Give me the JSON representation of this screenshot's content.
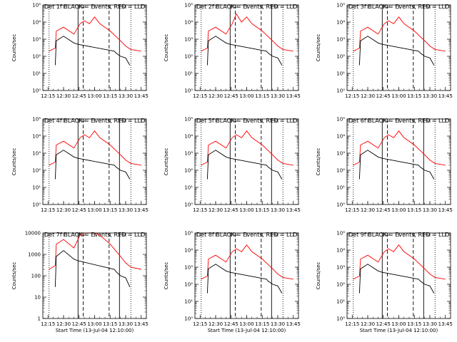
{
  "colors": {
    "background": "#ffffff",
    "events": "#000000",
    "lld": "#ff0000"
  },
  "chart_data": [
    {
      "type": "line",
      "title": "Det 1f BLACK = Events, RED = LLD",
      "ylabel": "Counts/sec",
      "xlabel": "",
      "yscale": "log",
      "ylim": [
        1,
        100000
      ],
      "ytick_labels": [
        "10⁰",
        "10¹",
        "10²",
        "10³",
        "10⁴",
        "10⁵"
      ],
      "xticks": [
        "12:15",
        "12:30",
        "12:45",
        "13:00",
        "13:15",
        "13:30",
        "13:45"
      ],
      "xlim": [
        "12:10",
        "13:50"
      ],
      "vlines": {
        "dotted": [
          "12:16",
          "13:35"
        ],
        "dashed": [
          "12:49",
          "13:14"
        ],
        "solid": [
          "12:44",
          "13:24"
        ]
      },
      "series": [
        {
          "name": "LLD",
          "color": "red",
          "x": [
            "12:16",
            "12:22",
            "12:23",
            "12:30",
            "12:40",
            "12:46",
            "12:50",
            "12:55",
            "13:00",
            "13:05",
            "13:15",
            "13:25",
            "13:30",
            "13:35",
            "13:45"
          ],
          "y": [
            200,
            300,
            3000,
            5000,
            2000,
            8000,
            12000,
            8000,
            20000,
            8000,
            3000,
            800,
            400,
            250,
            200
          ]
        },
        {
          "name": "Events",
          "color": "black",
          "x": [
            "12:22",
            "12:23",
            "12:30",
            "12:40",
            "12:44",
            "13:19",
            "13:21",
            "13:25",
            "13:30",
            "13:34"
          ],
          "y": [
            30,
            800,
            1500,
            600,
            500,
            200,
            150,
            100,
            80,
            30
          ]
        }
      ]
    },
    {
      "type": "line",
      "title": "Det 2f BLACK = Events, RED = LLD",
      "ylabel": "Counts/sec",
      "xlabel": "",
      "yscale": "log",
      "ylim": [
        1,
        100000
      ],
      "ytick_labels": [
        "10⁰",
        "10¹",
        "10²",
        "10³",
        "10⁴",
        "10⁵"
      ],
      "xticks": [
        "12:15",
        "12:30",
        "12:45",
        "13:00",
        "13:15",
        "13:30",
        "13:45"
      ],
      "xlim": [
        "12:10",
        "13:50"
      ],
      "vlines": {
        "dotted": [
          "12:16",
          "13:35"
        ],
        "dashed": [
          "12:49",
          "13:14"
        ],
        "solid": [
          "12:44",
          "13:24"
        ]
      },
      "series": [
        {
          "name": "LLD",
          "color": "red",
          "x": [
            "12:16",
            "12:22",
            "12:23",
            "12:30",
            "12:40",
            "12:46",
            "12:50",
            "12:55",
            "13:00",
            "13:05",
            "13:15",
            "13:25",
            "13:30",
            "13:35",
            "13:45"
          ],
          "y": [
            200,
            300,
            3000,
            5000,
            2000,
            8000,
            30000,
            10000,
            20000,
            8000,
            3000,
            800,
            400,
            250,
            200
          ]
        },
        {
          "name": "Events",
          "color": "black",
          "x": [
            "12:22",
            "12:23",
            "12:30",
            "12:40",
            "12:44",
            "13:19",
            "13:21",
            "13:25",
            "13:30",
            "13:34"
          ],
          "y": [
            30,
            800,
            1500,
            600,
            500,
            200,
            150,
            100,
            80,
            30
          ]
        }
      ]
    },
    {
      "type": "line",
      "title": "Det 3f BLACK = Events, RED = LLD",
      "ylabel": "Counts/sec",
      "xlabel": "",
      "yscale": "log",
      "ylim": [
        1,
        100000
      ],
      "ytick_labels": [
        "10⁰",
        "10¹",
        "10²",
        "10³",
        "10⁴",
        "10⁵"
      ],
      "xticks": [
        "12:15",
        "12:30",
        "12:45",
        "13:00",
        "13:15",
        "13:30",
        "13:45"
      ],
      "xlim": [
        "12:10",
        "13:50"
      ],
      "vlines": {
        "dotted": [
          "12:16",
          "13:35"
        ],
        "dashed": [
          "12:49",
          "13:14"
        ],
        "solid": [
          "12:44",
          "13:24"
        ]
      },
      "series": [
        {
          "name": "LLD",
          "color": "red",
          "x": [
            "12:16",
            "12:22",
            "12:23",
            "12:30",
            "12:40",
            "12:46",
            "12:50",
            "12:55",
            "13:00",
            "13:05",
            "13:15",
            "13:25",
            "13:30",
            "13:35",
            "13:45"
          ],
          "y": [
            200,
            300,
            3000,
            5000,
            2000,
            8000,
            12000,
            8000,
            20000,
            8000,
            3000,
            800,
            400,
            250,
            200
          ]
        },
        {
          "name": "Events",
          "color": "black",
          "x": [
            "12:22",
            "12:23",
            "12:30",
            "12:40",
            "12:44",
            "13:19",
            "13:21",
            "13:25",
            "13:30",
            "13:34"
          ],
          "y": [
            30,
            800,
            1500,
            600,
            500,
            200,
            150,
            100,
            80,
            30
          ]
        }
      ]
    },
    {
      "type": "line",
      "title": "Det 4f BLACK = Events, RED = LLD",
      "ylabel": "Counts/sec",
      "xlabel": "",
      "yscale": "log",
      "ylim": [
        1,
        100000
      ],
      "ytick_labels": [
        "10⁰",
        "10¹",
        "10²",
        "10³",
        "10⁴",
        "10⁵"
      ],
      "xticks": [
        "12:15",
        "12:30",
        "12:45",
        "13:00",
        "13:15",
        "13:30",
        "13:45"
      ],
      "xlim": [
        "12:10",
        "13:50"
      ],
      "vlines": {
        "dotted": [
          "12:16",
          "13:35"
        ],
        "dashed": [
          "12:49",
          "13:14"
        ],
        "solid": [
          "12:44",
          "13:24"
        ]
      },
      "series": [
        {
          "name": "LLD",
          "color": "red",
          "x": [
            "12:16",
            "12:22",
            "12:23",
            "12:30",
            "12:40",
            "12:46",
            "12:50",
            "12:55",
            "13:00",
            "13:05",
            "13:15",
            "13:25",
            "13:30",
            "13:35",
            "13:45"
          ],
          "y": [
            200,
            300,
            3000,
            5000,
            2000,
            8000,
            12000,
            8000,
            20000,
            8000,
            3000,
            800,
            400,
            250,
            200
          ]
        },
        {
          "name": "Events",
          "color": "black",
          "x": [
            "12:22",
            "12:23",
            "12:30",
            "12:40",
            "12:44",
            "13:19",
            "13:21",
            "13:25",
            "13:30",
            "13:34"
          ],
          "y": [
            30,
            800,
            1500,
            600,
            500,
            200,
            150,
            100,
            80,
            30
          ]
        }
      ]
    },
    {
      "type": "line",
      "title": "Det 5f BLACK = Events, RED = LLD",
      "ylabel": "Counts/sec",
      "xlabel": "",
      "yscale": "log",
      "ylim": [
        1,
        100000
      ],
      "ytick_labels": [
        "10⁰",
        "10¹",
        "10²",
        "10³",
        "10⁴",
        "10⁵"
      ],
      "xticks": [
        "12:15",
        "12:30",
        "12:45",
        "13:00",
        "13:15",
        "13:30",
        "13:45"
      ],
      "xlim": [
        "12:10",
        "13:50"
      ],
      "vlines": {
        "dotted": [
          "12:16",
          "13:35"
        ],
        "dashed": [
          "12:49",
          "13:14"
        ],
        "solid": [
          "12:44",
          "13:24"
        ]
      },
      "series": [
        {
          "name": "LLD",
          "color": "red",
          "x": [
            "12:16",
            "12:22",
            "12:23",
            "12:30",
            "12:40",
            "12:46",
            "12:50",
            "12:55",
            "13:00",
            "13:05",
            "13:15",
            "13:25",
            "13:30",
            "13:35",
            "13:45"
          ],
          "y": [
            200,
            300,
            3000,
            5000,
            2000,
            8000,
            12000,
            8000,
            20000,
            8000,
            3000,
            800,
            400,
            250,
            200
          ]
        },
        {
          "name": "Events",
          "color": "black",
          "x": [
            "12:22",
            "12:23",
            "12:30",
            "12:40",
            "12:44",
            "13:19",
            "13:21",
            "13:25",
            "13:30",
            "13:34"
          ],
          "y": [
            30,
            800,
            1500,
            600,
            500,
            200,
            150,
            100,
            80,
            30
          ]
        }
      ]
    },
    {
      "type": "line",
      "title": "Det 6f BLACK = Events, RED = LLD",
      "ylabel": "Counts/sec",
      "xlabel": "",
      "yscale": "log",
      "ylim": [
        1,
        100000
      ],
      "ytick_labels": [
        "10⁰",
        "10¹",
        "10²",
        "10³",
        "10⁴",
        "10⁵"
      ],
      "xticks": [
        "12:15",
        "12:30",
        "12:45",
        "13:00",
        "13:15",
        "13:30",
        "13:45"
      ],
      "xlim": [
        "12:10",
        "13:50"
      ],
      "vlines": {
        "dotted": [
          "12:16",
          "13:35"
        ],
        "dashed": [
          "12:49",
          "13:14"
        ],
        "solid": [
          "12:44",
          "13:24"
        ]
      },
      "series": [
        {
          "name": "LLD",
          "color": "red",
          "x": [
            "12:16",
            "12:22",
            "12:23",
            "12:30",
            "12:40",
            "12:46",
            "12:50",
            "12:55",
            "13:00",
            "13:05",
            "13:15",
            "13:25",
            "13:30",
            "13:35",
            "13:45"
          ],
          "y": [
            200,
            300,
            3000,
            5000,
            2000,
            8000,
            12000,
            8000,
            20000,
            8000,
            3000,
            800,
            400,
            250,
            200
          ]
        },
        {
          "name": "Events",
          "color": "black",
          "x": [
            "12:22",
            "12:23",
            "12:30",
            "12:40",
            "12:44",
            "13:19",
            "13:21",
            "13:25",
            "13:30",
            "13:34"
          ],
          "y": [
            30,
            800,
            1500,
            600,
            500,
            200,
            150,
            100,
            80,
            30
          ]
        }
      ]
    },
    {
      "type": "line",
      "title": "Det 7f BLACK = Events, RED = LLD",
      "ylabel": "Counts/sec",
      "xlabel": "Start Time (13-Jul-04 12:10:00)",
      "yscale": "log",
      "ylim": [
        1,
        10000
      ],
      "ytick_labels": [
        "1",
        "10",
        "100",
        "1000",
        "10000"
      ],
      "xticks": [
        "12:15",
        "12:30",
        "12:45",
        "13:00",
        "13:15",
        "13:30",
        "13:45"
      ],
      "xlim": [
        "12:10",
        "13:50"
      ],
      "vlines": {
        "dotted": [
          "12:16",
          "13:35"
        ],
        "dashed": [
          "12:49",
          "13:14"
        ],
        "solid": [
          "12:44",
          "13:24"
        ]
      },
      "series": [
        {
          "name": "LLD",
          "color": "red",
          "x": [
            "12:16",
            "12:22",
            "12:23",
            "12:30",
            "12:40",
            "12:46",
            "12:50",
            "12:55",
            "13:00",
            "13:05",
            "13:15",
            "13:25",
            "13:30",
            "13:35",
            "13:45"
          ],
          "y": [
            200,
            300,
            3000,
            5000,
            2000,
            8000,
            10000,
            10000,
            10000,
            8000,
            3000,
            800,
            400,
            250,
            200
          ]
        },
        {
          "name": "Events",
          "color": "black",
          "x": [
            "12:22",
            "12:23",
            "12:30",
            "12:40",
            "12:44",
            "13:19",
            "13:21",
            "13:25",
            "13:30",
            "13:34"
          ],
          "y": [
            30,
            800,
            1500,
            600,
            500,
            200,
            150,
            100,
            80,
            30
          ]
        }
      ]
    },
    {
      "type": "line",
      "title": "Det 8f BLACK = Events, RED = LLD",
      "ylabel": "Counts/sec",
      "xlabel": "Start Time (13-Jul-04 12:10:00)",
      "yscale": "log",
      "ylim": [
        1,
        100000
      ],
      "ytick_labels": [
        "10⁰",
        "10¹",
        "10²",
        "10³",
        "10⁴",
        "10⁵"
      ],
      "xticks": [
        "12:15",
        "12:30",
        "12:45",
        "13:00",
        "13:15",
        "13:30",
        "13:45"
      ],
      "xlim": [
        "12:10",
        "13:50"
      ],
      "vlines": {
        "dotted": [
          "12:16",
          "13:35"
        ],
        "dashed": [
          "12:49",
          "13:14"
        ],
        "solid": [
          "12:44",
          "13:24"
        ]
      },
      "series": [
        {
          "name": "LLD",
          "color": "red",
          "x": [
            "12:16",
            "12:22",
            "12:23",
            "12:30",
            "12:40",
            "12:46",
            "12:50",
            "12:55",
            "13:00",
            "13:05",
            "13:15",
            "13:25",
            "13:30",
            "13:35",
            "13:45"
          ],
          "y": [
            200,
            300,
            3000,
            5000,
            2000,
            8000,
            12000,
            8000,
            20000,
            8000,
            3000,
            800,
            400,
            250,
            200
          ]
        },
        {
          "name": "Events",
          "color": "black",
          "x": [
            "12:22",
            "12:23",
            "12:30",
            "12:40",
            "12:44",
            "13:19",
            "13:21",
            "13:25",
            "13:30",
            "13:34"
          ],
          "y": [
            30,
            800,
            1500,
            600,
            500,
            200,
            150,
            100,
            80,
            30
          ]
        }
      ]
    },
    {
      "type": "line",
      "title": "Det 9f BLACK = Events, RED = LLD",
      "ylabel": "Counts/sec",
      "xlabel": "Start Time (13-Jul-04 12:10:00)",
      "yscale": "log",
      "ylim": [
        1,
        100000
      ],
      "ytick_labels": [
        "10⁰",
        "10¹",
        "10²",
        "10³",
        "10⁴",
        "10⁵"
      ],
      "xticks": [
        "12:15",
        "12:30",
        "12:45",
        "13:00",
        "13:15",
        "13:30",
        "13:45"
      ],
      "xlim": [
        "12:10",
        "13:50"
      ],
      "vlines": {
        "dotted": [
          "12:16",
          "13:35"
        ],
        "dashed": [
          "12:49",
          "13:14"
        ],
        "solid": [
          "12:44",
          "13:24"
        ]
      },
      "series": [
        {
          "name": "LLD",
          "color": "red",
          "x": [
            "12:16",
            "12:22",
            "12:23",
            "12:30",
            "12:40",
            "12:46",
            "12:50",
            "12:55",
            "13:00",
            "13:05",
            "13:15",
            "13:25",
            "13:30",
            "13:35",
            "13:45"
          ],
          "y": [
            200,
            300,
            3000,
            5000,
            2000,
            8000,
            12000,
            8000,
            20000,
            8000,
            3000,
            800,
            400,
            250,
            200
          ]
        },
        {
          "name": "Events",
          "color": "black",
          "x": [
            "12:22",
            "12:23",
            "12:30",
            "12:40",
            "12:44",
            "13:19",
            "13:21",
            "13:25",
            "13:30",
            "13:34"
          ],
          "y": [
            30,
            800,
            1500,
            600,
            500,
            200,
            150,
            100,
            80,
            30
          ]
        }
      ]
    }
  ]
}
